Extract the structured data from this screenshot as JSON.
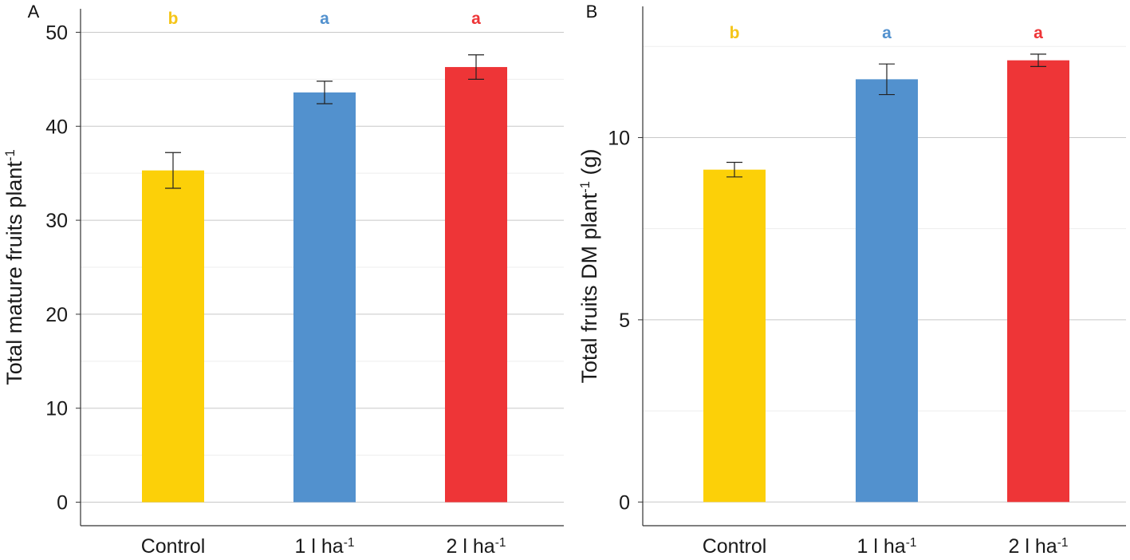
{
  "chart_data": [
    {
      "type": "bar",
      "panel_label": "A",
      "categories": [
        "Control",
        "1 l ha",
        "2 l ha"
      ],
      "category_superscripts": [
        "",
        "-1",
        "-1"
      ],
      "values": [
        35.3,
        43.6,
        46.3
      ],
      "errors": [
        1.9,
        1.2,
        1.3
      ],
      "significance": [
        "b",
        "a",
        "a"
      ],
      "ylabel": "Total mature fruits plant",
      "ylabel_superscript": "-1",
      "ylabel_suffix": "",
      "ylim": [
        -2.5,
        52.5
      ],
      "yticks": [
        0,
        10,
        20,
        30,
        40,
        50
      ],
      "minor_grid": [
        5,
        15,
        25,
        35,
        45
      ]
    },
    {
      "type": "bar",
      "panel_label": "B",
      "categories": [
        "Control",
        "1 l ha",
        "2 l ha"
      ],
      "category_superscripts": [
        "",
        "-1",
        "-1"
      ],
      "values": [
        9.12,
        11.6,
        12.12
      ],
      "errors": [
        0.2,
        0.42,
        0.17
      ],
      "significance": [
        "b",
        "a",
        "a"
      ],
      "ylabel": "Total fruits DM plant",
      "ylabel_superscript": "-1",
      "ylabel_suffix": " (g)",
      "ylim": [
        -0.65,
        13.6
      ],
      "yticks": [
        0,
        5,
        10
      ],
      "minor_grid": [
        2.5,
        7.5,
        12.5
      ]
    }
  ],
  "colors": [
    "#FCD008",
    "#5291CE",
    "#EE3537"
  ],
  "significance_colors": [
    "#F5C518",
    "#5291CE",
    "#EE3537"
  ]
}
